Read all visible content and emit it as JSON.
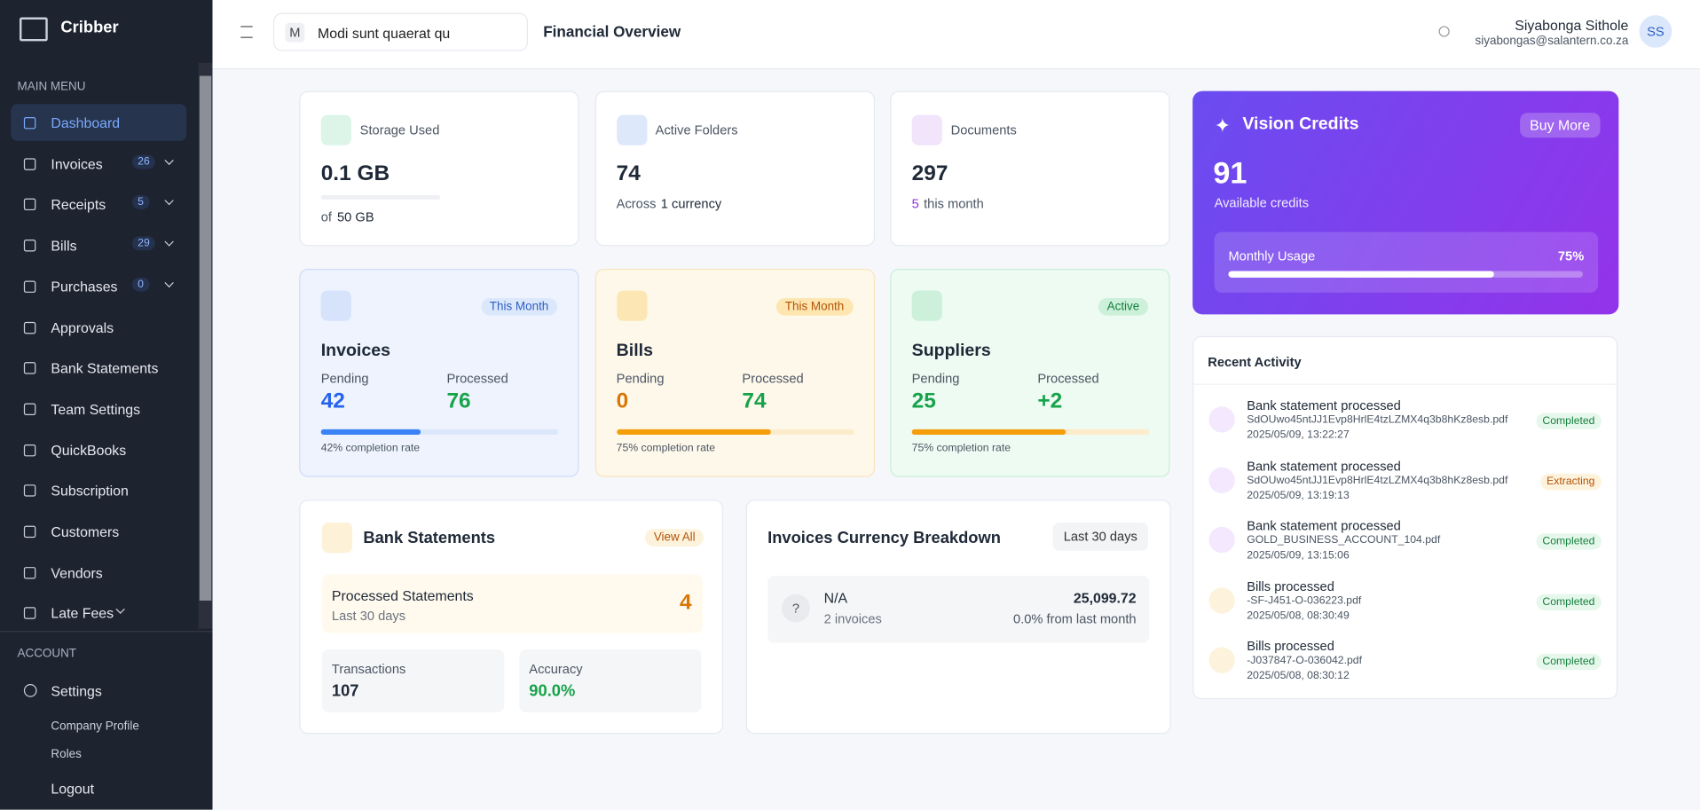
{
  "sidebar": {
    "brand": "Cribber",
    "main_menu_label": "MAIN MENU",
    "items": [
      {
        "label": "Dashboard"
      },
      {
        "label": "Invoices",
        "badge": "26"
      },
      {
        "label": "Receipts",
        "badge": "5"
      },
      {
        "label": "Bills",
        "badge": "29"
      },
      {
        "label": "Purchases",
        "badge": "0"
      },
      {
        "label": "Approvals"
      },
      {
        "label": "Bank Statements"
      },
      {
        "label": "Team Settings"
      },
      {
        "label": "QuickBooks"
      },
      {
        "label": "Subscription"
      },
      {
        "label": "Customers"
      },
      {
        "label": "Vendors"
      },
      {
        "label": "Late Fees"
      }
    ],
    "account_label": "ACCOUNT",
    "settings": "Settings",
    "sub_items": [
      "Company Profile",
      "Roles"
    ],
    "logout": "Logout"
  },
  "header": {
    "company_initial": "M",
    "company_name": "Modi sunt quaerat qu",
    "page_title": "Financial Overview",
    "user_name": "Siyabonga Sithole",
    "user_email": "siyabongas@salantern.co.za",
    "avatar": "SS"
  },
  "stats": [
    {
      "label": "Storage Used",
      "value": "0.1 GB",
      "sub_a": "of",
      "sub_b": "50 GB"
    },
    {
      "label": "Active Folders",
      "value": "74",
      "sub_a": "Across",
      "sub_b": "1 currency"
    },
    {
      "label": "Documents",
      "value": "297",
      "sub_a": "5",
      "sub_b": "this month"
    }
  ],
  "summary": [
    {
      "badge": "This Month",
      "title": "Invoices",
      "pending_label": "Pending",
      "pending": "42",
      "processed_label": "Processed",
      "processed": "76",
      "completion": "42% completion rate"
    },
    {
      "badge": "This Month",
      "title": "Bills",
      "pending_label": "Pending",
      "pending": "0",
      "processed_label": "Processed",
      "processed": "74",
      "completion": "75% completion rate"
    },
    {
      "badge": "Active",
      "title": "Suppliers",
      "pending_label": "Pending",
      "pending": "25",
      "processed_label": "Processed",
      "processed": "+2",
      "completion": "75% completion rate"
    }
  ],
  "vision": {
    "title": "Vision Credits",
    "button": "Buy More",
    "credits": "91",
    "credits_label": "Available credits",
    "usage_label": "Monthly Usage",
    "usage_pct": "75%"
  },
  "bank": {
    "title": "Bank Statements",
    "view_all": "View All",
    "processed_title": "Processed Statements",
    "processed_sub": "Last 30 days",
    "processed_count": "4",
    "transactions_label": "Transactions",
    "transactions": "107",
    "accuracy_label": "Accuracy",
    "accuracy": "90.0%"
  },
  "currency": {
    "title": "Invoices Currency Breakdown",
    "range": "Last 30 days",
    "icon": "?",
    "name": "N/A",
    "count": "2 invoices",
    "amount": "25,099.72",
    "change": "0.0% from last month"
  },
  "activity": {
    "title": "Recent Activity",
    "items": [
      {
        "title": "Bank statement processed",
        "file": "SdOUwo45ntJJ1Evp8HrlE4tzLZMX4q3b8hKz8esb.pdf",
        "time": "2025/05/09, 13:22:27",
        "status": "Completed"
      },
      {
        "title": "Bank statement processed",
        "file": "SdOUwo45ntJJ1Evp8HrlE4tzLZMX4q3b8hKz8esb.pdf",
        "time": "2025/05/09, 13:19:13",
        "status": "Extracting"
      },
      {
        "title": "Bank statement processed",
        "file": "GOLD_BUSINESS_ACCOUNT_104.pdf",
        "time": "2025/05/09, 13:15:06",
        "status": "Completed"
      },
      {
        "title": "Bills processed",
        "file": "-SF-J451-O-036223.pdf",
        "time": "2025/05/08, 08:30:49",
        "status": "Completed"
      },
      {
        "title": "Bills processed",
        "file": "-J037847-O-036042.pdf",
        "time": "2025/05/08, 08:30:12",
        "status": "Completed"
      }
    ]
  }
}
